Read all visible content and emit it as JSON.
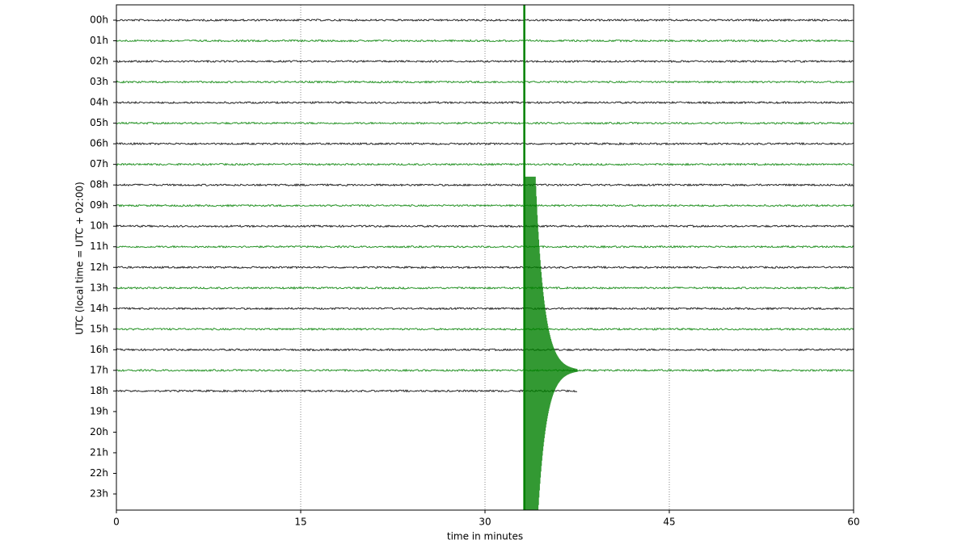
{
  "chart_data": {
    "type": "helicorder",
    "xlabel": "time in minutes",
    "ylabel": "UTC (local time = UTC + 02:00)",
    "categories": [
      "00h",
      "01h",
      "02h",
      "03h",
      "04h",
      "05h",
      "06h",
      "07h",
      "08h",
      "09h",
      "10h",
      "11h",
      "12h",
      "13h",
      "14h",
      "15h",
      "16h",
      "17h",
      "18h",
      "19h",
      "20h",
      "21h",
      "22h",
      "23h"
    ],
    "trace_end": [
      60,
      60,
      60,
      60,
      60,
      60,
      60,
      60,
      60,
      60,
      60,
      60,
      60,
      60,
      60,
      60,
      60,
      60,
      37.5,
      null,
      null,
      null,
      null,
      null
    ],
    "colors": [
      "#000000",
      "#008000"
    ],
    "event_minute": 33.2,
    "xlim": [
      0,
      60
    ],
    "xticks": [
      0,
      15,
      30,
      45,
      60
    ],
    "grid": true
  }
}
